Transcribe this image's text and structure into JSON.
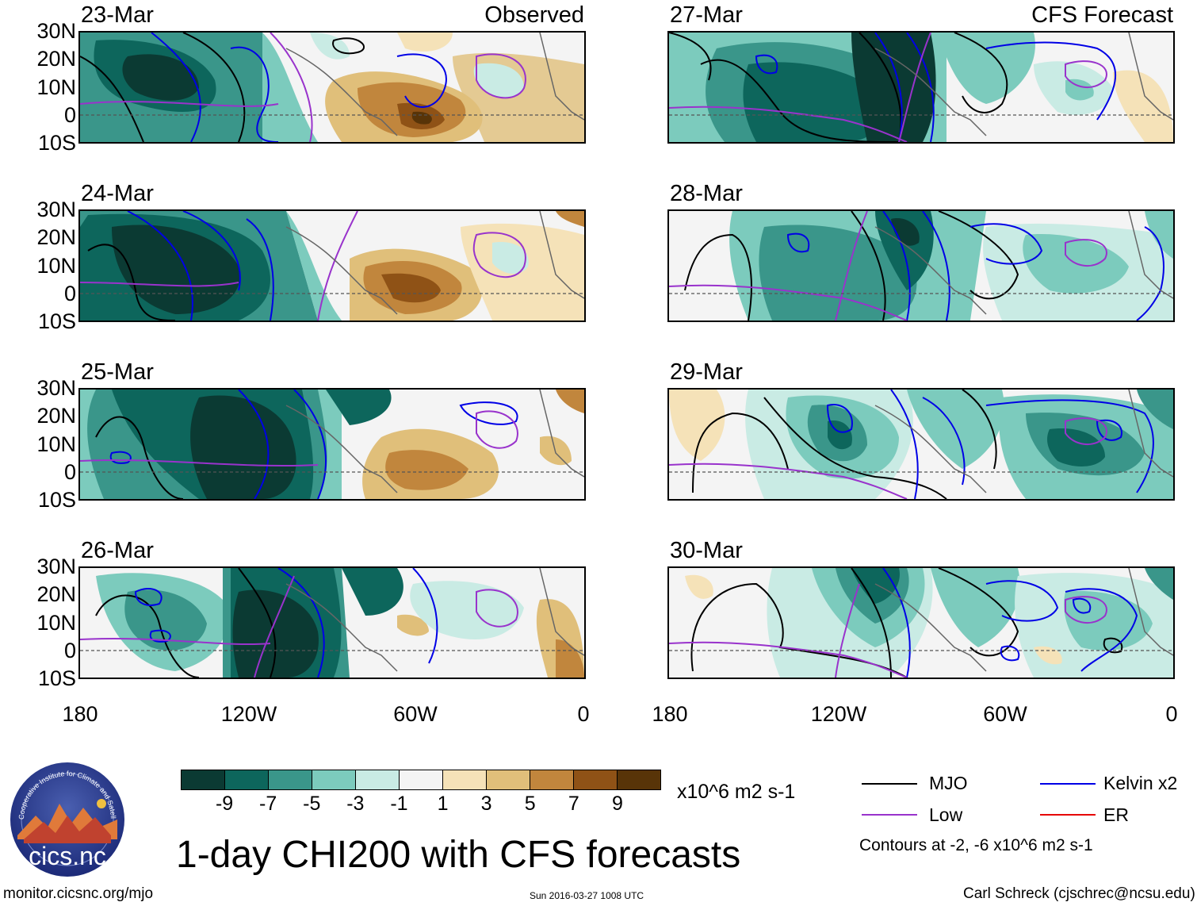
{
  "panels": {
    "observed": [
      {
        "date": "23-Mar",
        "label": "Observed"
      },
      {
        "date": "24-Mar",
        "label": ""
      },
      {
        "date": "25-Mar",
        "label": ""
      },
      {
        "date": "26-Mar",
        "label": ""
      }
    ],
    "forecast": [
      {
        "date": "27-Mar",
        "label": "CFS Forecast"
      },
      {
        "date": "28-Mar",
        "label": ""
      },
      {
        "date": "29-Mar",
        "label": ""
      },
      {
        "date": "30-Mar",
        "label": ""
      }
    ]
  },
  "lat_labels": [
    "30N",
    "20N",
    "10N",
    "0",
    "10S"
  ],
  "lon_labels": [
    "180",
    "120W",
    "60W",
    "0"
  ],
  "colorbar": {
    "colors": [
      "#0b3a33",
      "#0d665c",
      "#3a968a",
      "#7ccbbd",
      "#c9ebe4",
      "#f4f4f4",
      "#f5e2b8",
      "#e0bf7a",
      "#c1863d",
      "#8f5216",
      "#583408"
    ],
    "labels": [
      "-9",
      "-7",
      "-5",
      "-3",
      "-1",
      "1",
      "3",
      "5",
      "7",
      "9"
    ],
    "units": "x10^6 m2 s-1"
  },
  "legend": {
    "items": [
      {
        "name": "MJO",
        "color": "#000000"
      },
      {
        "name": "Kelvin x2",
        "color": "#0000e6"
      },
      {
        "name": "Low",
        "color": "#9933cc"
      },
      {
        "name": "ER",
        "color": "#e60000"
      }
    ],
    "contours": "Contours at -2, -6 x10^6 m2 s-1"
  },
  "logo_text": "cics.nc",
  "logo_ring_text": "Cooperative Institute for Climate and Satellites",
  "title": "1-day CHI200 with CFS forecasts",
  "footer": {
    "url": "monitor.cicsnc.org/mjo",
    "timestamp": "Sun 2016-03-27 1008 UTC",
    "author": "Carl Schreck (cjschrec@ncsu.edu)"
  }
}
